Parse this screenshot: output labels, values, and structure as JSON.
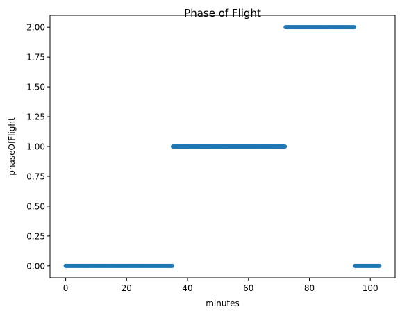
{
  "chart_data": {
    "type": "scatter",
    "title": "Phase of Flight",
    "xlabel": "minutes",
    "ylabel": "phaseOfFlight",
    "xlim": [
      -5.15,
      108.15
    ],
    "ylim": [
      -0.1,
      2.1
    ],
    "x_ticks": [
      0,
      20,
      40,
      60,
      80,
      100
    ],
    "x_tick_labels": [
      "0",
      "20",
      "40",
      "60",
      "80",
      "100"
    ],
    "y_ticks": [
      0,
      0.25,
      0.5,
      0.75,
      1.0,
      1.25,
      1.5,
      1.75,
      2.0
    ],
    "y_tick_labels": [
      "0.00",
      "0.25",
      "0.50",
      "0.75",
      "1.00",
      "1.25",
      "1.50",
      "1.75",
      "2.00"
    ],
    "grid": false,
    "marker_color": "#1f77b4",
    "segments": [
      {
        "x_start": 0,
        "x_end": 35.0,
        "y": 0
      },
      {
        "x_start": 35.2,
        "x_end": 72.0,
        "y": 1
      },
      {
        "x_start": 72.2,
        "x_end": 94.8,
        "y": 2
      },
      {
        "x_start": 95.0,
        "x_end": 103.0,
        "y": 0
      }
    ]
  }
}
